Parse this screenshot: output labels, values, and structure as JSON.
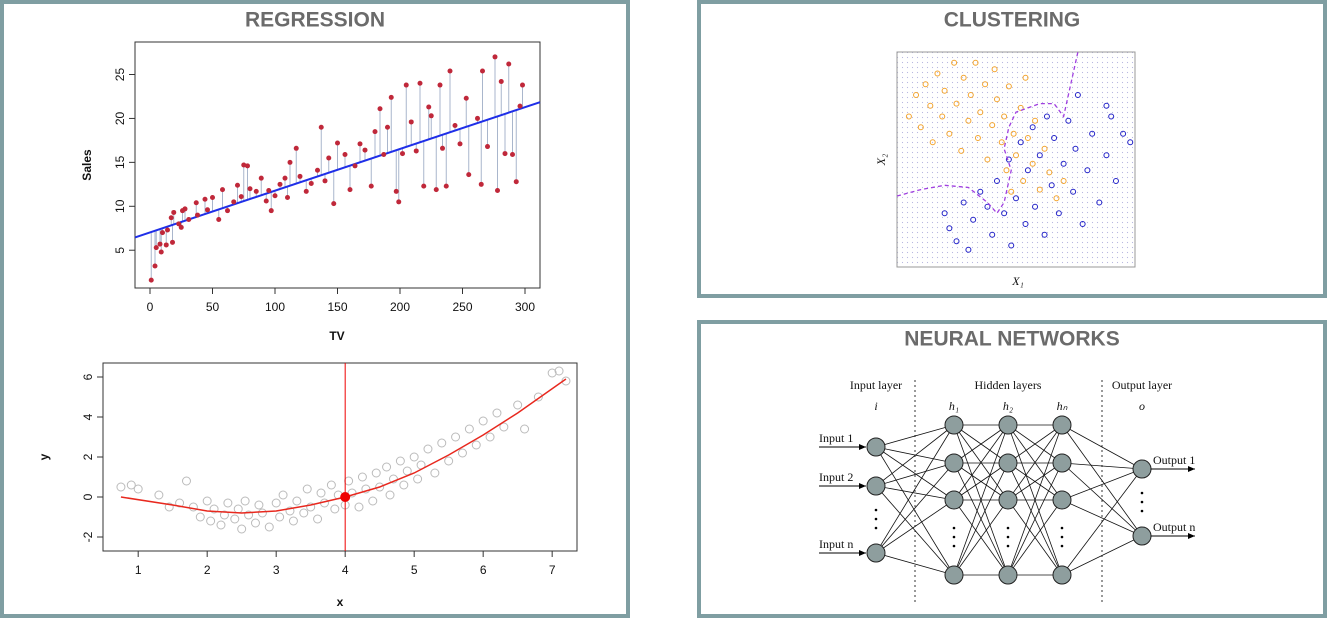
{
  "panels": [
    {
      "title": "REGRESSION"
    },
    {
      "title": "CLUSTERING"
    },
    {
      "title": "NEURAL NETWORKS"
    }
  ],
  "chart_data": [
    {
      "type": "scatter",
      "xlabel": "TV",
      "ylabel": "Sales",
      "color": "#c0283a",
      "xlim": [
        -12,
        312
      ],
      "ylim": [
        0.7,
        28.7
      ],
      "xticks": [
        0,
        50,
        100,
        150,
        200,
        250,
        300
      ],
      "yticks": [
        5,
        10,
        15,
        20,
        25
      ],
      "x": [
        1,
        4,
        5,
        8,
        9,
        10,
        13,
        14,
        17,
        18,
        19,
        23,
        25,
        26,
        28,
        31,
        37,
        38,
        44,
        46,
        50,
        55,
        58,
        62,
        67,
        70,
        73,
        75,
        78,
        80,
        85,
        89,
        93,
        95,
        97,
        100,
        104,
        108,
        110,
        112,
        117,
        120,
        125,
        129,
        134,
        137,
        140,
        143,
        147,
        150,
        156,
        160,
        164,
        168,
        172,
        177,
        180,
        184,
        187,
        190,
        193,
        197,
        199,
        202,
        205,
        209,
        213,
        216,
        219,
        223,
        225,
        229,
        232,
        234,
        237,
        240,
        244,
        248,
        253,
        255,
        262,
        265,
        266,
        270,
        276,
        278,
        281,
        284,
        287,
        290,
        293,
        296,
        298
      ],
      "values": [
        1.6,
        3.2,
        5.3,
        5.7,
        4.8,
        7,
        5.6,
        7.3,
        8.7,
        5.9,
        9.3,
        8,
        7.6,
        9.5,
        9.7,
        8.5,
        10.4,
        9,
        10.8,
        9.6,
        11,
        8.5,
        11.9,
        9.5,
        10.5,
        12.4,
        11.1,
        14.7,
        14.6,
        12,
        11.7,
        13.2,
        10.6,
        11.8,
        9.5,
        11.2,
        12.5,
        13.2,
        11,
        15,
        16.6,
        13.4,
        11.7,
        12.6,
        14.1,
        19,
        12.9,
        15.5,
        10.3,
        17.2,
        15.9,
        11.9,
        14.6,
        17.1,
        16.4,
        12.3,
        18.5,
        21.1,
        15.9,
        19,
        22.4,
        11.7,
        10.5,
        16,
        23.8,
        19.6,
        16.3,
        24,
        12.3,
        21.3,
        20.3,
        11.9,
        23.8,
        16.6,
        12.3,
        25.4,
        19.2,
        17.1,
        22.3,
        13.6,
        20,
        12.5,
        25.4,
        16.8,
        27,
        11.8,
        24.2,
        16,
        26.2,
        15.9,
        12.8,
        21.4,
        23.8
      ],
      "fit": {
        "intercept": 7.03,
        "slope": 0.0475,
        "color": "#1f2fe8"
      }
    },
    {
      "type": "scatter",
      "xlabel": "x",
      "ylabel": "y",
      "color": "#bbbbbb",
      "xlim": [
        0.49,
        7.36
      ],
      "ylim": [
        -2.7,
        6.7
      ],
      "xticks": [
        1,
        2,
        3,
        4,
        5,
        6,
        7
      ],
      "yticks": [
        -2,
        0,
        2,
        4,
        6
      ],
      "x": [
        0.75,
        0.9,
        1.0,
        1.3,
        1.45,
        1.6,
        1.7,
        1.8,
        1.9,
        2.0,
        2.05,
        2.1,
        2.2,
        2.25,
        2.3,
        2.4,
        2.45,
        2.5,
        2.55,
        2.6,
        2.7,
        2.75,
        2.8,
        2.9,
        3.0,
        3.05,
        3.1,
        3.2,
        3.25,
        3.3,
        3.4,
        3.45,
        3.5,
        3.6,
        3.65,
        3.7,
        3.8,
        3.85,
        3.9,
        4.0,
        4.05,
        4.1,
        4.2,
        4.25,
        4.3,
        4.4,
        4.45,
        4.5,
        4.6,
        4.65,
        4.7,
        4.8,
        4.85,
        4.9,
        5.0,
        5.05,
        5.1,
        5.2,
        5.3,
        5.4,
        5.5,
        5.6,
        5.7,
        5.8,
        5.9,
        6.0,
        6.1,
        6.2,
        6.3,
        6.5,
        6.6,
        6.8,
        7.0,
        7.1,
        7.2
      ],
      "values": [
        0.5,
        0.6,
        0.4,
        0.1,
        -0.5,
        -0.3,
        0.8,
        -0.5,
        -1.0,
        -0.2,
        -1.2,
        -0.6,
        -1.4,
        -0.9,
        -0.3,
        -1.1,
        -0.6,
        -1.6,
        -0.2,
        -0.9,
        -1.3,
        -0.4,
        -0.8,
        -1.5,
        -0.3,
        -1.0,
        0.1,
        -0.7,
        -1.2,
        -0.2,
        -0.8,
        0.4,
        -0.5,
        -1.1,
        0.2,
        -0.3,
        0.6,
        -0.6,
        0.1,
        -0.4,
        0.8,
        0.2,
        -0.5,
        1.0,
        0.4,
        -0.2,
        1.2,
        0.5,
        1.5,
        0.1,
        0.9,
        1.8,
        0.6,
        1.3,
        2.0,
        0.9,
        1.6,
        2.4,
        1.2,
        2.7,
        1.8,
        3.0,
        2.2,
        3.4,
        2.6,
        3.8,
        3.0,
        4.2,
        3.5,
        4.6,
        3.4,
        5.0,
        6.2,
        6.3,
        5.8
      ],
      "curve": {
        "x": [
          0.75,
          1.5,
          2,
          2.5,
          3,
          3.5,
          4,
          4.5,
          5,
          5.5,
          6,
          6.5,
          7.2
        ],
        "y": [
          0.0,
          -0.4,
          -0.7,
          -0.8,
          -0.7,
          -0.4,
          0,
          0.5,
          1.2,
          2.1,
          3.1,
          4.2,
          5.9
        ],
        "color": "#e8281e"
      },
      "highlight": {
        "x": 4,
        "y": 0,
        "color": "#ee0000"
      }
    },
    {
      "type": "scatter",
      "xlabel": "X₁",
      "ylabel": "X₂",
      "xlim": [
        0,
        100
      ],
      "ylim": [
        0,
        100
      ],
      "series": [
        {
          "color": "#f3a530",
          "x": [
            5,
            8,
            10,
            12,
            14,
            15,
            17,
            19,
            20,
            22,
            24,
            25,
            27,
            28,
            30,
            31,
            33,
            34,
            35,
            37,
            38,
            40,
            41,
            42,
            44,
            45,
            46,
            47,
            49,
            50,
            52,
            53,
            55,
            57,
            58,
            60,
            62,
            64,
            67,
            70,
            54,
            48
          ],
          "values": [
            70,
            80,
            65,
            85,
            75,
            58,
            90,
            70,
            82,
            62,
            95,
            76,
            54,
            88,
            68,
            80,
            95,
            60,
            72,
            85,
            50,
            66,
            92,
            78,
            58,
            70,
            45,
            84,
            62,
            52,
            74,
            40,
            60,
            48,
            68,
            36,
            55,
            44,
            32,
            40,
            88,
            35
          ]
        },
        {
          "color": "#2424c8",
          "x": [
            20,
            22,
            25,
            28,
            30,
            32,
            35,
            38,
            40,
            42,
            45,
            47,
            48,
            50,
            52,
            54,
            55,
            57,
            58,
            60,
            62,
            63,
            65,
            66,
            68,
            70,
            72,
            74,
            75,
            78,
            80,
            82,
            85,
            88,
            90,
            92,
            95,
            88,
            98,
            76
          ],
          "values": [
            25,
            18,
            12,
            30,
            8,
            22,
            35,
            28,
            15,
            40,
            25,
            50,
            10,
            32,
            58,
            20,
            45,
            65,
            28,
            52,
            15,
            70,
            38,
            60,
            25,
            48,
            68,
            35,
            55,
            20,
            45,
            62,
            30,
            52,
            70,
            40,
            62,
            75,
            58,
            80
          ]
        }
      ],
      "boundary": {
        "x": [
          0,
          10,
          20,
          30,
          38,
          42,
          45,
          48,
          45,
          47,
          50,
          55,
          60,
          66,
          70,
          72,
          74,
          76
        ],
        "y": [
          33,
          36,
          38,
          37,
          30,
          25,
          30,
          45,
          55,
          65,
          72,
          74,
          76,
          76,
          70,
          80,
          90,
          100
        ],
        "color": "#a040e0"
      }
    }
  ],
  "neural_network": {
    "layer_titles": [
      "Input layer",
      "Hidden layers",
      "Output layer"
    ],
    "layer_symbols": [
      "i",
      "h₁",
      "h₂",
      "hₙ",
      "o"
    ],
    "inputs": [
      "Input 1",
      "Input 2",
      "Input n"
    ],
    "outputs": [
      "Output 1",
      "Output n"
    ]
  }
}
